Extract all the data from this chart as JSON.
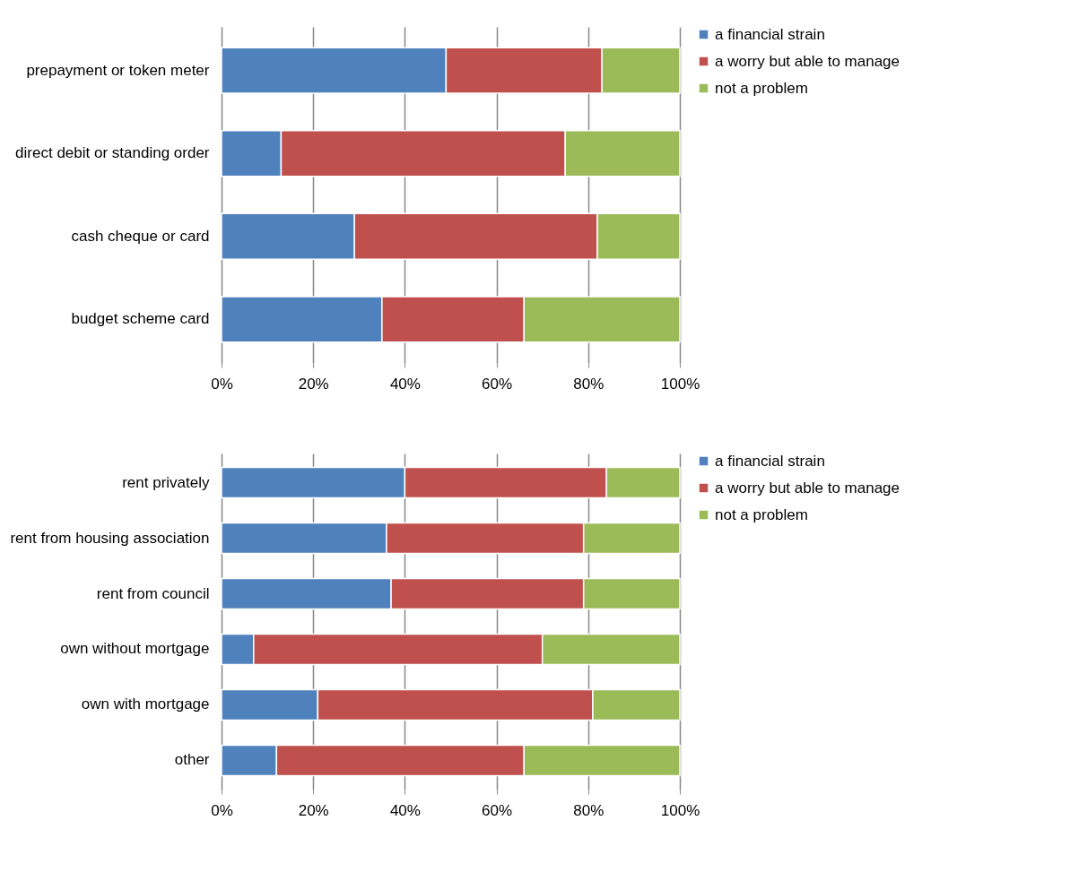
{
  "chart_data": [
    {
      "type": "bar",
      "orientation": "horizontal",
      "stacked": true,
      "grid": "x",
      "legend": "right",
      "categories": [
        "prepayment or token meter",
        "direct debit or standing order",
        "cash cheque or card",
        "budget scheme card"
      ],
      "series": [
        {
          "name": "a financial strain",
          "color": "#4f81bd",
          "values": [
            49,
            13,
            29,
            35
          ]
        },
        {
          "name": "a worry but able to manage",
          "color": "#c0504d",
          "values": [
            34,
            62,
            53,
            31
          ]
        },
        {
          "name": "not a problem",
          "color": "#9bbb59",
          "values": [
            17,
            25,
            18,
            34
          ]
        }
      ],
      "xlim": [
        0,
        100
      ],
      "xticks": [
        {
          "value": 0,
          "label": "0%"
        },
        {
          "value": 20,
          "label": "20%"
        },
        {
          "value": 40,
          "label": "40%"
        },
        {
          "value": 60,
          "label": "60%"
        },
        {
          "value": 80,
          "label": "80%"
        },
        {
          "value": 100,
          "label": "100%"
        }
      ]
    },
    {
      "type": "bar",
      "orientation": "horizontal",
      "stacked": true,
      "grid": "x",
      "legend": "right",
      "categories": [
        "rent privately",
        "rent from housing association",
        "rent from council",
        "own without mortgage",
        "own with mortgage",
        "other"
      ],
      "series": [
        {
          "name": "a financial strain",
          "color": "#4f81bd",
          "values": [
            40,
            36,
            37,
            7,
            21,
            12
          ]
        },
        {
          "name": "a worry but able to manage",
          "color": "#c0504d",
          "values": [
            44,
            43,
            42,
            63,
            60,
            54
          ]
        },
        {
          "name": "not a problem",
          "color": "#9bbb59",
          "values": [
            16,
            21,
            21,
            30,
            19,
            34
          ]
        }
      ],
      "xlim": [
        0,
        100
      ],
      "xticks": [
        {
          "value": 0,
          "label": "0%"
        },
        {
          "value": 20,
          "label": "20%"
        },
        {
          "value": 40,
          "label": "40%"
        },
        {
          "value": 60,
          "label": "60%"
        },
        {
          "value": 80,
          "label": "80%"
        },
        {
          "value": 100,
          "label": "100%"
        }
      ]
    }
  ]
}
